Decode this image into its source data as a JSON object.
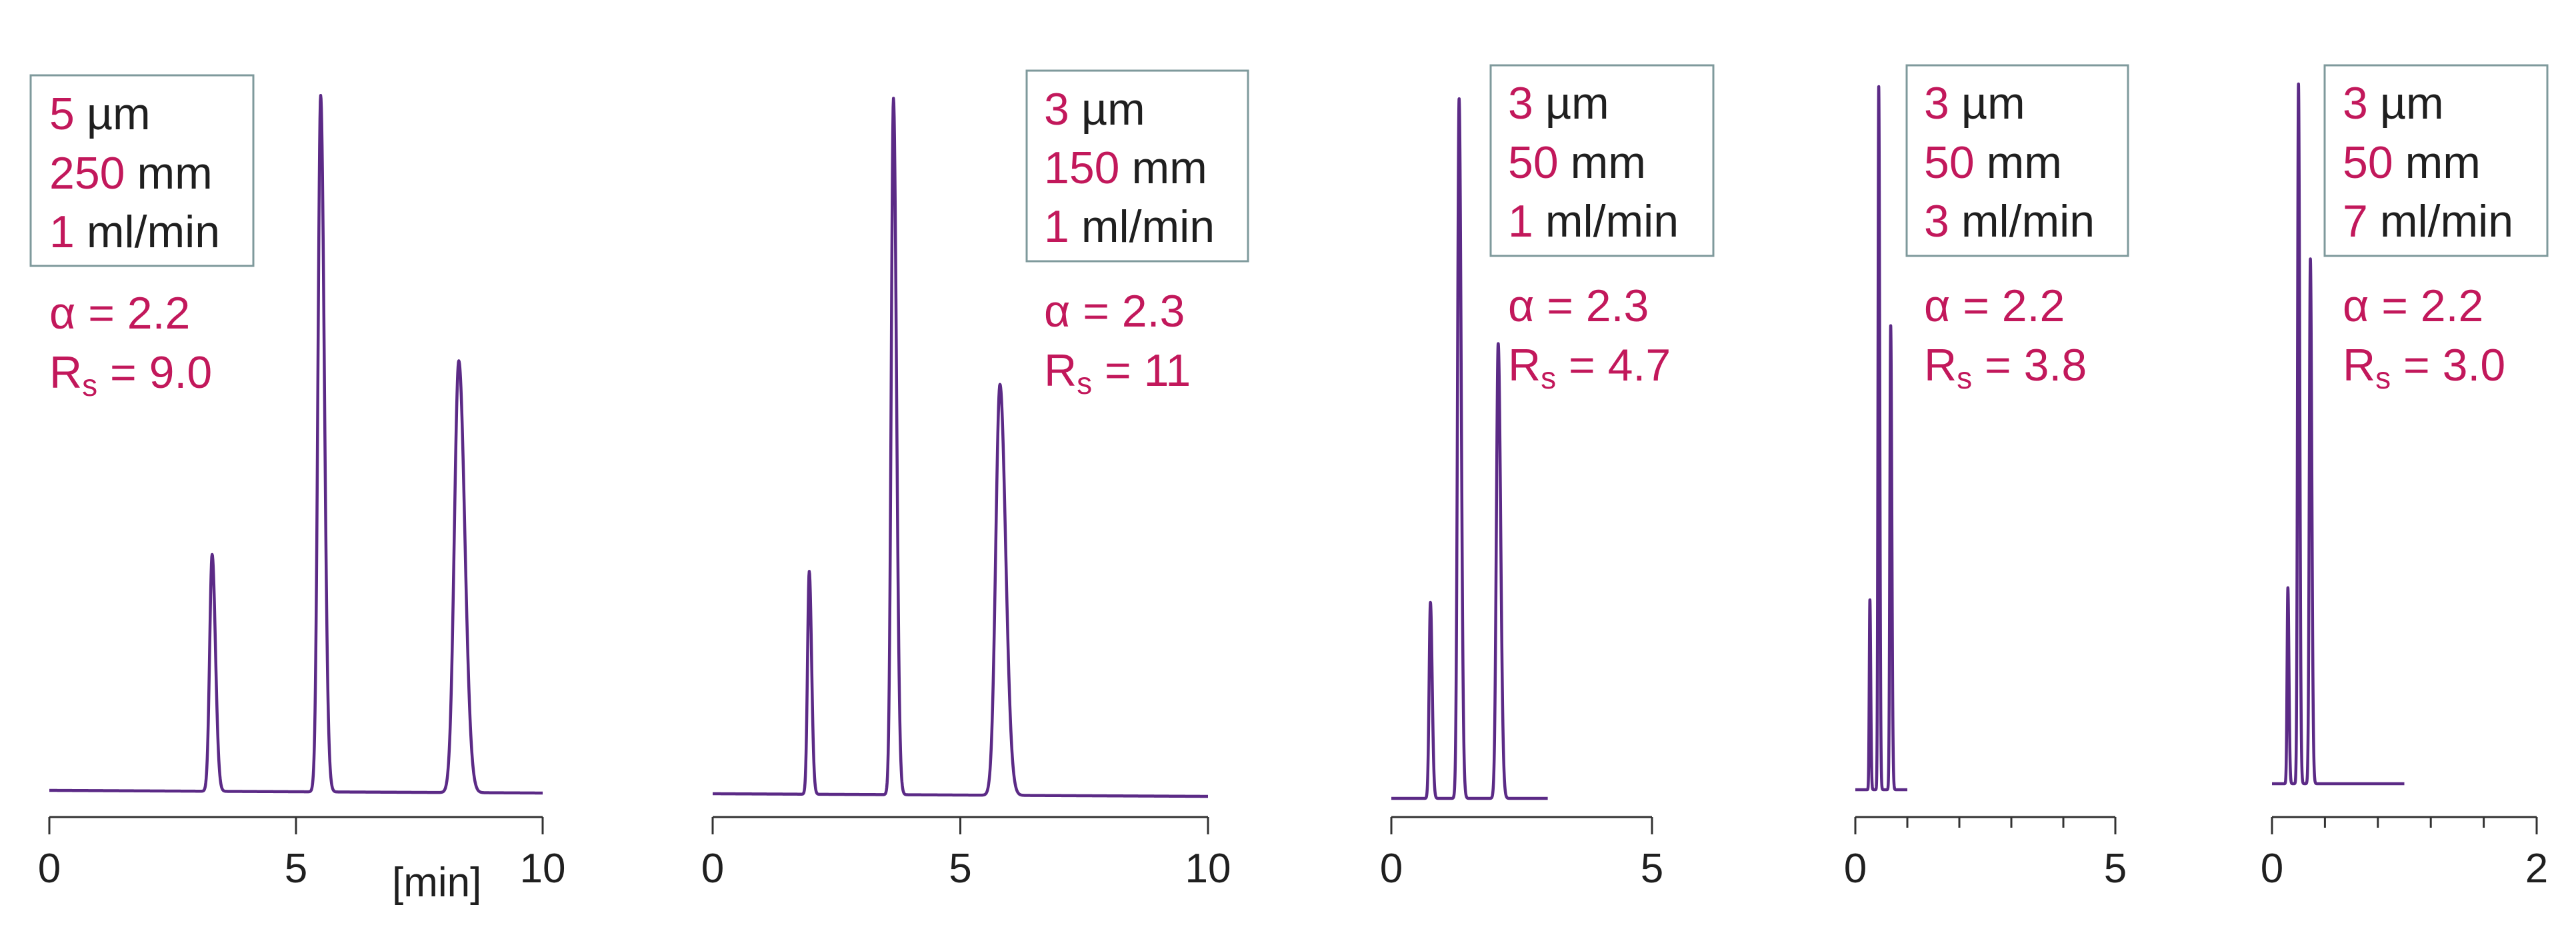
{
  "chart_data": [
    {
      "type": "line",
      "params": {
        "particle_size": "5",
        "particle_size_unit": "µm",
        "length": "250",
        "length_unit": "mm",
        "flow": "1",
        "flow_unit": "ml/min"
      },
      "alpha": "α = 2.2",
      "rs_prefix": "R",
      "rs_sub": "s",
      "rs_value": " = 9.0",
      "xlabel": "[min]",
      "xlim": [
        0,
        10
      ],
      "xticks": [
        "0",
        "5",
        "10"
      ],
      "minor_ticks": [],
      "peaks": [
        {
          "x": 3.3,
          "height": 0.34
        },
        {
          "x": 5.5,
          "height": 1.0
        },
        {
          "x": 8.3,
          "height": 0.62
        }
      ]
    },
    {
      "type": "line",
      "params": {
        "particle_size": "3",
        "particle_size_unit": "µm",
        "length": "150",
        "length_unit": "mm",
        "flow": "1",
        "flow_unit": "ml/min"
      },
      "alpha": "α = 2.3",
      "rs_prefix": "R",
      "rs_sub": "s",
      "rs_value": " = 11",
      "xlim": [
        0,
        10
      ],
      "xticks": [
        "0",
        "5",
        "10"
      ],
      "minor_ticks": [],
      "peaks": [
        {
          "x": 1.95,
          "height": 0.32
        },
        {
          "x": 3.65,
          "height": 1.0
        },
        {
          "x": 5.8,
          "height": 0.59
        }
      ]
    },
    {
      "type": "line",
      "params": {
        "particle_size": "3",
        "particle_size_unit": "µm",
        "length": "50",
        "length_unit": "mm",
        "flow": "1",
        "flow_unit": "ml/min"
      },
      "alpha": "α = 2.3",
      "rs_prefix": "R",
      "rs_sub": "s",
      "rs_value": " = 4.7",
      "xlim": [
        0,
        5
      ],
      "xticks": [
        "0",
        "5"
      ],
      "minor_ticks": [],
      "peaks": [
        {
          "x": 0.75,
          "height": 0.28
        },
        {
          "x": 1.3,
          "height": 1.0
        },
        {
          "x": 2.05,
          "height": 0.65
        }
      ]
    },
    {
      "type": "line",
      "params": {
        "particle_size": "3",
        "particle_size_unit": "µm",
        "length": "50",
        "length_unit": "mm",
        "flow": "3",
        "flow_unit": "ml/min"
      },
      "alpha": "α = 2.2",
      "rs_prefix": "R",
      "rs_sub": "s",
      "rs_value": " = 3.8",
      "xlim": [
        0,
        5
      ],
      "xticks": [
        "0",
        "5"
      ],
      "minor_ticks": [
        1,
        2,
        3,
        4
      ],
      "peaks": [
        {
          "x": 0.28,
          "height": 0.27
        },
        {
          "x": 0.45,
          "height": 1.0
        },
        {
          "x": 0.68,
          "height": 0.66
        }
      ]
    },
    {
      "type": "line",
      "params": {
        "particle_size": "3",
        "particle_size_unit": "µm",
        "length": "50",
        "length_unit": "mm",
        "flow": "7",
        "flow_unit": "ml/min"
      },
      "alpha": "α = 2.2",
      "rs_prefix": "R",
      "rs_sub": "s",
      "rs_value": " = 3.0",
      "xlim": [
        0,
        2
      ],
      "xticks": [
        "0",
        "2"
      ],
      "minor_ticks": [
        0.4,
        0.8,
        1.2,
        1.6
      ],
      "peaks": [
        {
          "x": 0.12,
          "height": 0.28
        },
        {
          "x": 0.2,
          "height": 1.0
        },
        {
          "x": 0.29,
          "height": 0.75
        }
      ]
    }
  ]
}
